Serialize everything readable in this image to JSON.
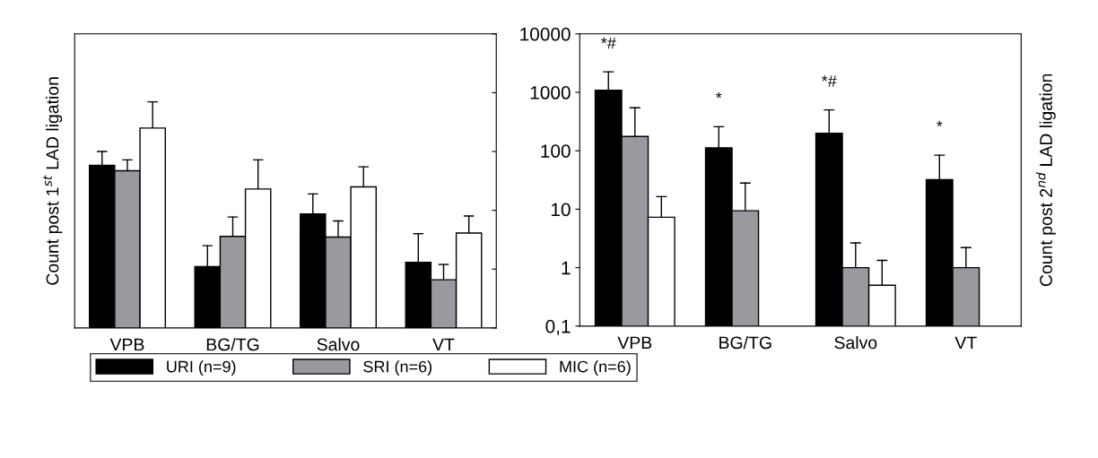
{
  "chart_data": [
    {
      "type": "bar",
      "ylabel": "Count post 1$^{st}$ LAD ligation",
      "categories": [
        "VPB",
        "BG/TG",
        "Salvo",
        "VT"
      ],
      "log": true,
      "ylim": [
        0.1,
        10000
      ],
      "yticks": [
        {
          "value": 0.1,
          "label": null
        },
        {
          "value": 1,
          "label": null
        },
        {
          "value": 10,
          "label": null
        },
        {
          "value": 100,
          "label": null
        },
        {
          "value": 1000,
          "label": null
        },
        {
          "value": 10000,
          "label": null
        }
      ],
      "tick_labels": "x",
      "legend": "bottom",
      "grid": false,
      "series": [
        {
          "name": "URI (n=9)",
          "color": "#000000",
          "values": [
            58,
            1.1,
            8.7,
            1.3
          ],
          "errors": [
            42,
            1.4,
            10.3,
            2.7
          ]
        },
        {
          "name": "SRI (n=6)",
          "color": "#9a99a0",
          "values": [
            47,
            3.6,
            3.5,
            0.66
          ],
          "errors": [
            25,
            4.1,
            3.1,
            0.54
          ]
        },
        {
          "name": "MIC (n=6)",
          "color": "#ffffff",
          "values": [
            250,
            23,
            25,
            4.1
          ],
          "errors": [
            450,
            49,
            30,
            3.9
          ]
        }
      ]
    },
    {
      "type": "bar",
      "ylabel": "Count post 2$^{nd}$ LAD ligation",
      "categories": [
        "VPB",
        "BG/TG",
        "Salvo",
        "VT"
      ],
      "log": true,
      "ylim": [
        0.1,
        10000
      ],
      "yticks": [
        {
          "value": 0.1,
          "label": "0,1"
        },
        1,
        10,
        100,
        1000,
        10000
      ],
      "grid": false,
      "annotations": [
        "*#",
        "*",
        "*#",
        "*"
      ],
      "series": [
        {
          "name": "URI (n=9)",
          "color": "#000000",
          "values": [
            1090,
            112,
            200,
            32
          ],
          "errors": [
            1150,
            146,
            300,
            52
          ]
        },
        {
          "name": "SRI (n=6)",
          "color": "#9a99a0",
          "values": [
            176,
            9.4,
            1,
            1
          ],
          "errors": [
            369,
            18.6,
            1.65,
            1.2
          ]
        },
        {
          "name": "MIC (n=6)",
          "color": "#ffffff",
          "values": [
            7.3,
            null,
            0.5,
            null
          ],
          "errors": [
            9.1,
            null,
            0.83,
            null
          ]
        }
      ]
    }
  ]
}
